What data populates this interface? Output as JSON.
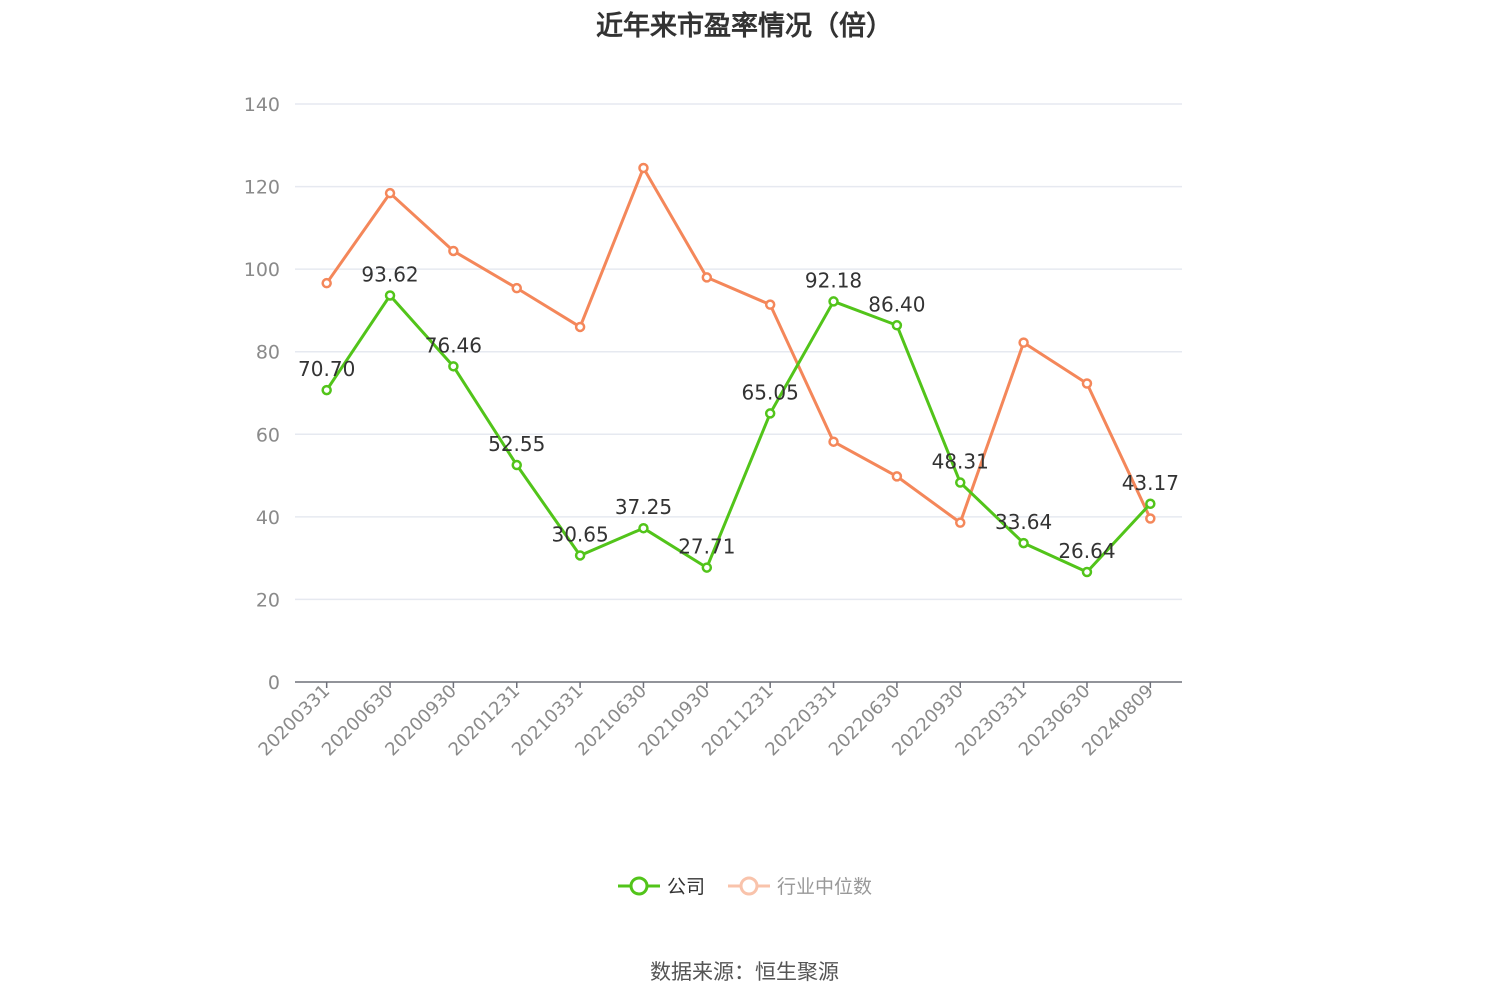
{
  "chart_data": {
    "type": "line",
    "title": "近年来市盈率情况（倍）",
    "categories": [
      "20200331",
      "20200630",
      "20200930",
      "20201231",
      "20210331",
      "20210630",
      "20210930",
      "20211231",
      "20220331",
      "20220630",
      "20220930",
      "20230331",
      "20230630",
      "20240809"
    ],
    "series": [
      {
        "name": "公司",
        "color": "#52c41a",
        "values": [
          70.7,
          93.62,
          76.46,
          52.55,
          30.65,
          37.25,
          27.71,
          65.05,
          92.18,
          86.4,
          48.31,
          33.64,
          26.64,
          43.17
        ],
        "labels": [
          "70.70",
          "93.62",
          "76.46",
          "52.55",
          "30.65",
          "37.25",
          "27.71",
          "65.05",
          "92.18",
          "86.40",
          "48.31",
          "33.64",
          "26.64",
          "43.17"
        ]
      },
      {
        "name": "行业中位数",
        "color": "#f4875a",
        "values": [
          96.6,
          118.4,
          104.4,
          95.4,
          86.0,
          124.5,
          98.0,
          91.4,
          58.2,
          49.8,
          38.6,
          82.2,
          72.3,
          39.6
        ]
      }
    ],
    "yticks": [
      "0",
      "20",
      "40",
      "60",
      "80",
      "100",
      "120",
      "140"
    ],
    "ylim": [
      0,
      140
    ],
    "grid": true,
    "legend_position": "bottom-center",
    "source": "数据来源：恒生聚源"
  }
}
